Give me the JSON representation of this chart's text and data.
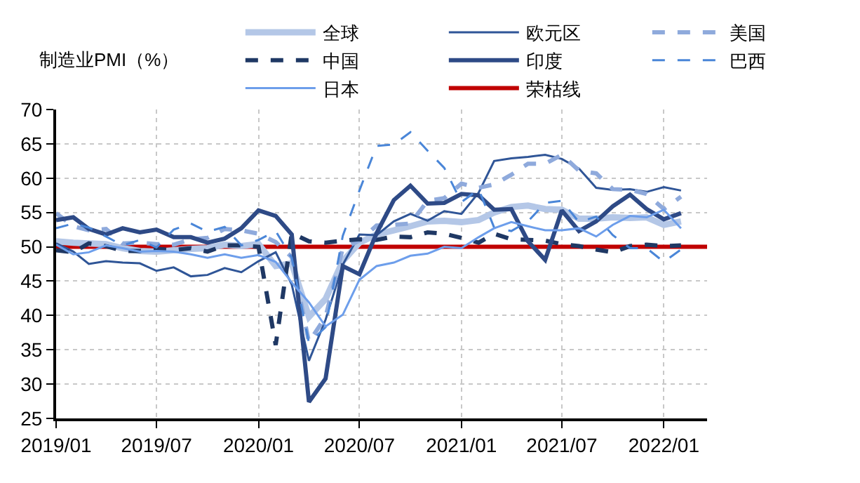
{
  "chart_data": {
    "type": "line",
    "ylabel": "制造业PMI（%）",
    "x": [
      "2019-01",
      "2019-02",
      "2019-03",
      "2019-04",
      "2019-05",
      "2019-06",
      "2019-07",
      "2019-08",
      "2019-09",
      "2019-10",
      "2019-11",
      "2019-12",
      "2020-01",
      "2020-02",
      "2020-03",
      "2020-04",
      "2020-05",
      "2020-06",
      "2020-07",
      "2020-08",
      "2020-09",
      "2020-10",
      "2020-11",
      "2020-12",
      "2021-01",
      "2021-02",
      "2021-03",
      "2021-04",
      "2021-05",
      "2021-06",
      "2021-07",
      "2021-08",
      "2021-09",
      "2021-10",
      "2021-11",
      "2021-12",
      "2022-01",
      "2022-02"
    ],
    "series": [
      {
        "name": "全球",
        "color": "#b4c7e7",
        "values": [
          50.8,
          50.6,
          50.5,
          50.4,
          49.8,
          49.4,
          49.3,
          49.5,
          49.7,
          49.8,
          50.3,
          50.1,
          50.4,
          47.2,
          47.6,
          39.8,
          42.4,
          47.9,
          50.6,
          51.8,
          52.4,
          53.0,
          53.7,
          53.8,
          53.6,
          53.9,
          55.0,
          55.8,
          56.0,
          55.5,
          55.4,
          54.1,
          54.1,
          54.3,
          54.2,
          54.3,
          53.2,
          53.7
        ]
      },
      {
        "name": "欧元区",
        "color": "#2f5597",
        "values": [
          50.5,
          49.3,
          47.5,
          47.9,
          47.7,
          47.6,
          46.5,
          47.0,
          45.7,
          45.9,
          46.9,
          46.3,
          47.9,
          49.2,
          44.5,
          33.4,
          39.4,
          47.4,
          51.8,
          51.7,
          53.7,
          54.8,
          53.8,
          55.2,
          54.8,
          57.9,
          62.5,
          62.9,
          63.1,
          63.4,
          62.8,
          61.4,
          58.6,
          58.3,
          58.4,
          58.0,
          58.7,
          58.2
        ]
      },
      {
        "name": "美国",
        "color": "#8faadc",
        "line_style": "dashed",
        "values": [
          54.9,
          53.0,
          52.4,
          52.6,
          50.5,
          50.6,
          50.4,
          50.3,
          51.1,
          51.3,
          52.6,
          52.4,
          51.9,
          50.7,
          48.5,
          36.1,
          39.8,
          49.8,
          50.9,
          53.1,
          53.2,
          53.4,
          56.7,
          57.1,
          59.2,
          58.6,
          59.1,
          60.5,
          62.1,
          62.1,
          63.4,
          61.1,
          60.7,
          58.4,
          58.3,
          57.7,
          55.5,
          57.3
        ]
      },
      {
        "name": "中国",
        "color": "#1f3864",
        "line_style": "dashed",
        "values": [
          49.5,
          49.2,
          50.5,
          50.1,
          49.4,
          49.4,
          49.7,
          49.5,
          49.8,
          49.3,
          50.2,
          50.2,
          50.0,
          35.7,
          52.0,
          50.8,
          50.6,
          50.9,
          51.1,
          51.0,
          51.5,
          51.4,
          52.1,
          51.9,
          51.3,
          50.6,
          51.9,
          51.1,
          51.0,
          50.9,
          50.4,
          50.1,
          49.6,
          49.2,
          50.1,
          50.3,
          50.1,
          50.2
        ]
      },
      {
        "name": "印度",
        "color": "#2e4a86",
        "values": [
          53.9,
          54.3,
          52.6,
          51.8,
          52.7,
          52.1,
          52.5,
          51.4,
          51.4,
          50.6,
          51.2,
          52.7,
          55.3,
          54.5,
          51.8,
          27.4,
          30.8,
          47.2,
          46.0,
          52.0,
          56.8,
          58.9,
          56.3,
          56.4,
          57.7,
          57.5,
          55.4,
          55.5,
          50.8,
          48.1,
          55.3,
          52.3,
          53.7,
          55.9,
          57.6,
          55.5,
          54.0,
          54.9
        ]
      },
      {
        "name": "巴西",
        "color": "#4a86d8",
        "line_style": "dashed",
        "values": [
          52.7,
          53.4,
          52.8,
          51.5,
          50.2,
          51.0,
          49.9,
          52.5,
          53.4,
          52.2,
          52.9,
          50.2,
          51.0,
          52.3,
          48.4,
          36.0,
          38.3,
          51.6,
          58.2,
          64.7,
          64.9,
          66.7,
          64.0,
          61.5,
          56.5,
          58.4,
          52.8,
          52.3,
          53.7,
          56.4,
          56.7,
          53.6,
          54.4,
          51.7,
          49.8,
          49.8,
          47.8,
          49.6
        ]
      },
      {
        "name": "日本",
        "color": "#6d9eeb",
        "values": [
          50.3,
          48.9,
          49.2,
          50.2,
          49.8,
          49.3,
          49.4,
          49.3,
          48.9,
          48.4,
          48.9,
          48.4,
          48.8,
          47.8,
          44.8,
          41.9,
          38.4,
          40.1,
          45.2,
          47.2,
          47.7,
          48.7,
          49.0,
          50.0,
          49.8,
          51.4,
          52.7,
          53.6,
          53.0,
          52.4,
          52.4,
          52.7,
          51.5,
          53.2,
          54.5,
          54.3,
          55.4,
          52.7
        ]
      }
    ],
    "ref_lines": [
      {
        "axis": "y",
        "value": 50,
        "label": "荣枯线",
        "color": "#c00000"
      }
    ],
    "xlim": [
      "2019-01",
      "2022-03-20"
    ],
    "xticks": [
      {
        "value": "2019-01",
        "label": "2019/01"
      },
      {
        "value": "2019-07",
        "label": "2019/07"
      },
      {
        "value": "2020-01",
        "label": "2020/01"
      },
      {
        "value": "2020-07",
        "label": "2020/07"
      },
      {
        "value": "2021-01",
        "label": "2021/01"
      },
      {
        "value": "2021-07",
        "label": "2021/07"
      },
      {
        "value": "2022-01",
        "label": "2022/01"
      }
    ],
    "ylim": [
      25,
      70
    ],
    "yticks": [
      25,
      30,
      35,
      40,
      45,
      50,
      55,
      60,
      65,
      70
    ],
    "grid": true,
    "legend": "top",
    "marker": "none"
  }
}
